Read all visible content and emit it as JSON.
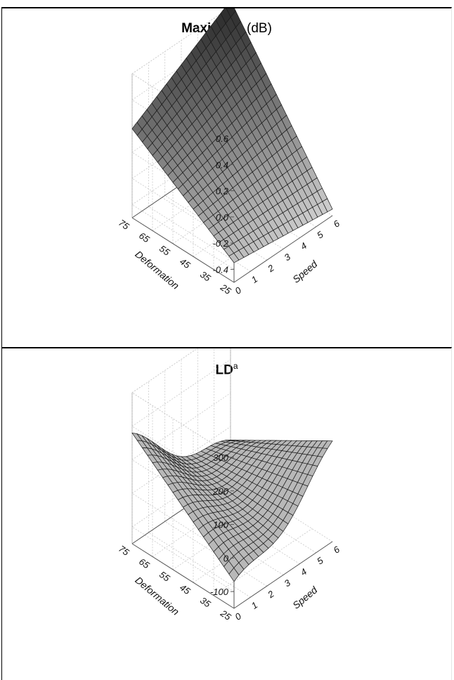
{
  "chart_data": [
    {
      "type": "surface",
      "title_bold": "Maximum",
      "title_rest": " (dB)",
      "xlabel": "Speed",
      "ylabel": "Deformation",
      "x_ticks": [
        "0",
        "1",
        "2",
        "3",
        "4",
        "5",
        "6"
      ],
      "y_ticks": [
        "25",
        "35",
        "45",
        "55",
        "65",
        "75"
      ],
      "z_ticks": [
        "-0.4",
        "-0.2",
        "0.0",
        "0.2",
        "0.4",
        "0.6"
      ],
      "xlim": [
        0,
        6
      ],
      "ylim": [
        25,
        75
      ],
      "zlim": [
        -0.5,
        0.6
      ],
      "grid": true,
      "corner_values": {
        "speed0_def75": 0.18,
        "speed6_def75": 0.65,
        "speed0_def25": -0.35,
        "speed6_def25": -0.45
      }
    },
    {
      "type": "surface",
      "title_bold": "LD",
      "title_sup": "a",
      "xlabel": "Speed",
      "ylabel": "Deformation",
      "x_ticks": [
        "0",
        "1",
        "2",
        "3",
        "4",
        "5",
        "6"
      ],
      "y_ticks": [
        "25",
        "35",
        "45",
        "55",
        "65",
        "75"
      ],
      "z_ticks": [
        "-100",
        "0",
        "100",
        "200",
        "300"
      ],
      "xlim": [
        0,
        6
      ],
      "ylim": [
        25,
        75
      ],
      "zlim": [
        -150,
        300
      ],
      "grid": true,
      "corner_values": {
        "speed0_def75": 60,
        "speed6_def75": 150,
        "speed0_def25": -100,
        "speed6_def25": -40
      }
    }
  ]
}
